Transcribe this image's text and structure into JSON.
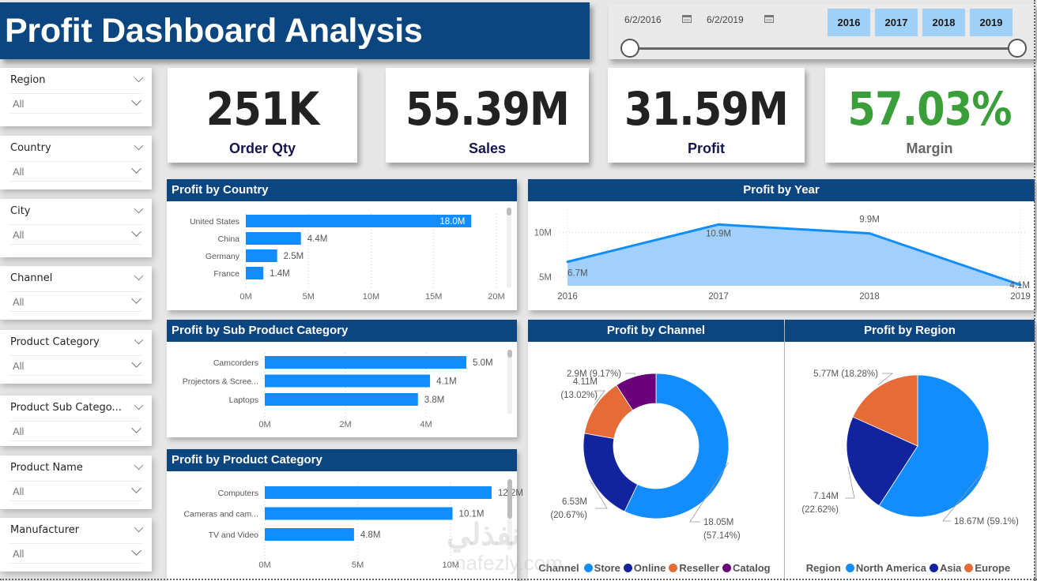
{
  "header": {
    "title": "Profit Dashboard Analysis"
  },
  "date_slicer": {
    "start_date": "6/2/2016",
    "end_date": "6/2/2019",
    "years": [
      "2016",
      "2017",
      "2018",
      "2019"
    ],
    "range_fraction": [
      0,
      1
    ]
  },
  "slicers": [
    {
      "label": "Region",
      "value": "All"
    },
    {
      "label": "Country",
      "value": "All"
    },
    {
      "label": "City",
      "value": "All"
    },
    {
      "label": "Channel",
      "value": "All"
    },
    {
      "label": "Product Category",
      "value": "All"
    },
    {
      "label": "Product Sub Catego...",
      "value": "All"
    },
    {
      "label": "Product Name",
      "value": "All"
    },
    {
      "label": "Manufacturer",
      "value": "All"
    }
  ],
  "kpis": [
    {
      "value": "251K",
      "label": "Order Qty"
    },
    {
      "value": "55.39M",
      "label": "Sales"
    },
    {
      "value": "31.59M",
      "label": "Profit"
    },
    {
      "value": "57.03%",
      "label": "Margin"
    }
  ],
  "colors": {
    "header": "#0b4680",
    "bar": "#118dff",
    "area_fill": "#a0d0fb",
    "margin_green": "#3a9e3a",
    "store": "#118dff",
    "online": "#12239e",
    "reseller": "#e66c37",
    "catalog": "#6b007b"
  },
  "chart_data": [
    {
      "id": "profit_by_country",
      "type": "bar",
      "orientation": "horizontal",
      "title": "Profit by Country",
      "categories": [
        "United States",
        "China",
        "Germany",
        "France"
      ],
      "values": [
        18.0,
        4.4,
        2.5,
        1.4
      ],
      "data_labels": [
        "18.0M",
        "4.4M",
        "2.5M",
        "1.4M"
      ],
      "xticks": [
        "0M",
        "5M",
        "10M",
        "15M",
        "20M"
      ],
      "xlim": [
        0,
        20
      ],
      "unit": "M",
      "grid": true
    },
    {
      "id": "profit_by_year",
      "type": "area",
      "title": "Profit by Year",
      "x": [
        "2016",
        "2017",
        "2018",
        "2019"
      ],
      "values": [
        6.7,
        10.9,
        9.9,
        4.1
      ],
      "data_labels": [
        "6.7M",
        "10.9M",
        "9.9M",
        "4.1M"
      ],
      "yticks": [
        "5M",
        "10M"
      ],
      "ylim": [
        4,
        12
      ],
      "unit": "M",
      "grid": true
    },
    {
      "id": "profit_by_sub_product_category",
      "type": "bar",
      "orientation": "horizontal",
      "title": "Profit by Sub Product Category",
      "categories": [
        "Camcorders",
        "Projectors & Scree...",
        "Laptops"
      ],
      "values": [
        5.0,
        4.1,
        3.8
      ],
      "data_labels": [
        "5.0M",
        "4.1M",
        "3.8M"
      ],
      "xticks": [
        "0M",
        "2M",
        "4M"
      ],
      "xlim": [
        0,
        6
      ],
      "unit": "M",
      "grid": true
    },
    {
      "id": "profit_by_product_category",
      "type": "bar",
      "orientation": "horizontal",
      "title": "Profit by Product Category",
      "categories": [
        "Computers",
        "Cameras and cam...",
        "TV and Video"
      ],
      "values": [
        12.2,
        10.1,
        4.8
      ],
      "data_labels": [
        "12.2M",
        "10.1M",
        "4.8M"
      ],
      "xticks": [
        "0M",
        "5M",
        "10M"
      ],
      "xlim": [
        0,
        12.5
      ],
      "unit": "M",
      "grid": true
    },
    {
      "id": "profit_by_channel",
      "type": "pie",
      "variant": "donut",
      "title": "Profit by Channel",
      "legend_title": "Channel",
      "legend_position": "bottom",
      "categories": [
        "Store",
        "Online",
        "Reseller",
        "Catalog"
      ],
      "values": [
        18.05,
        6.53,
        4.11,
        2.9
      ],
      "percentages": [
        57.14,
        20.67,
        13.02,
        9.17
      ],
      "labels": [
        [
          "18.05M",
          "(57.14%)"
        ],
        [
          "6.53M",
          "(20.67%)"
        ],
        [
          "4.11M",
          "(13.02%)"
        ],
        [
          "2.9M (9.17%)"
        ]
      ],
      "colors": [
        "#118dff",
        "#12239e",
        "#e66c37",
        "#6b007b"
      ]
    },
    {
      "id": "profit_by_region",
      "type": "pie",
      "title": "Profit by Region",
      "legend_title": "Region",
      "legend_position": "bottom",
      "categories": [
        "North America",
        "Asia",
        "Europe"
      ],
      "values": [
        18.67,
        7.14,
        5.77
      ],
      "percentages": [
        59.1,
        22.62,
        18.28
      ],
      "labels": [
        [
          "18.67M (59.1%)"
        ],
        [
          "7.14M",
          "(22.62%)"
        ],
        [
          "5.77M (18.28%)"
        ]
      ],
      "colors": [
        "#118dff",
        "#12239e",
        "#e66c37"
      ]
    }
  ],
  "watermark": {
    "arabic": "نفذلي",
    "latin": "nafezly.com"
  }
}
